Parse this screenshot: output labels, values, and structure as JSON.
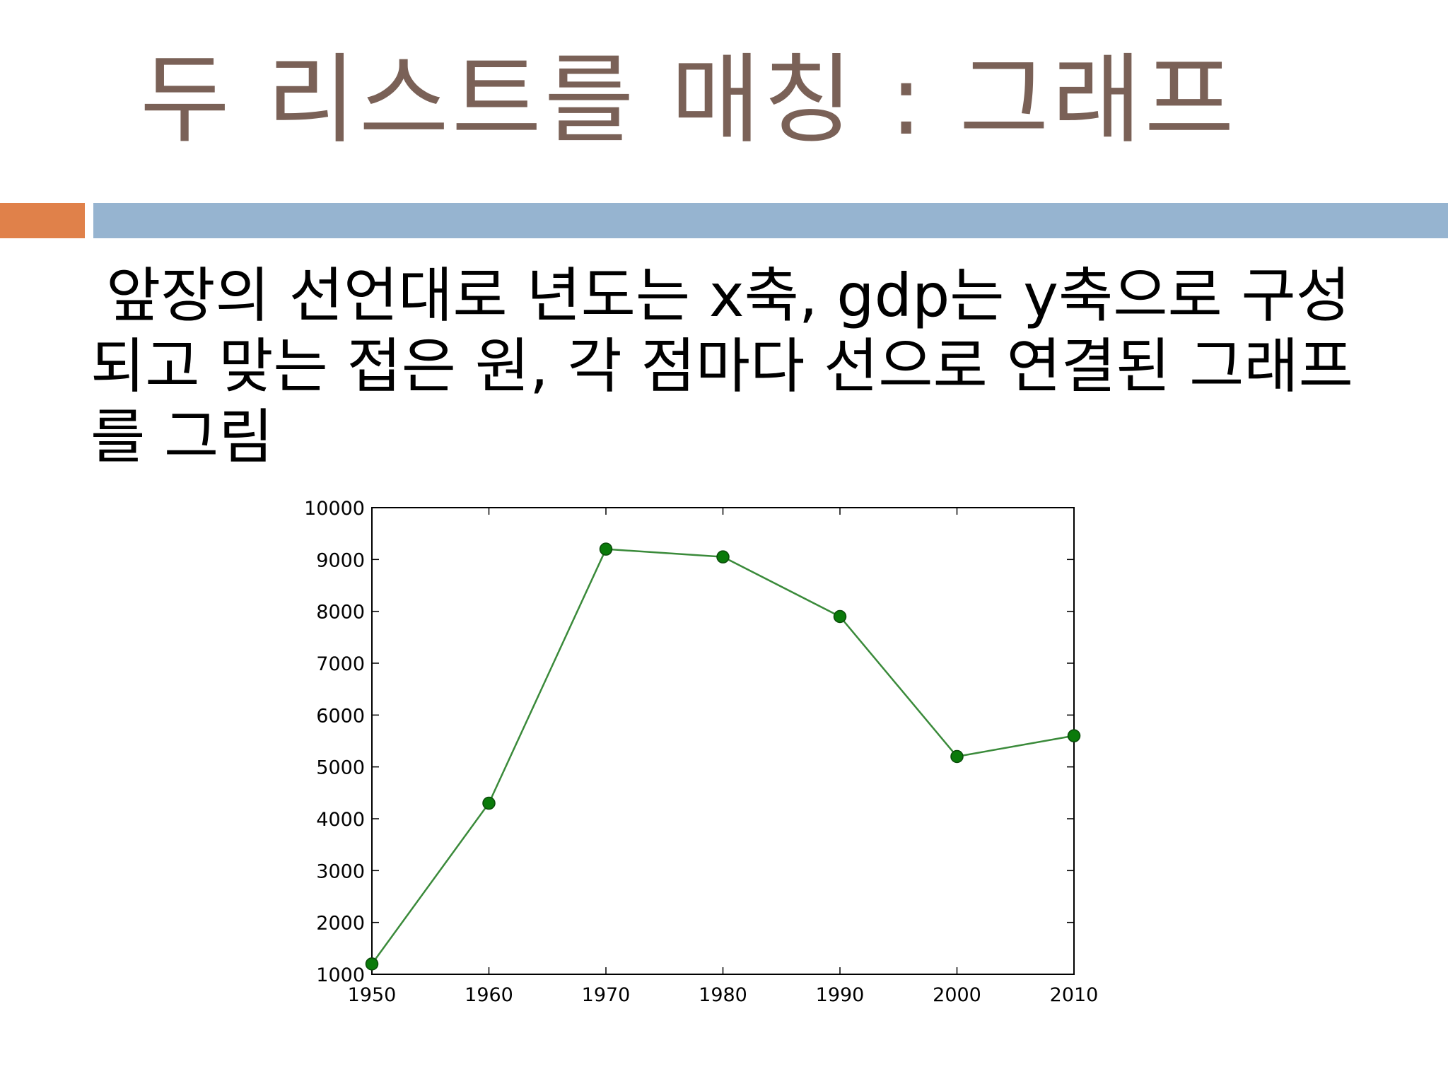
{
  "slide": {
    "title": "두 리스트를 매칭 : 그래프",
    "body": "앞장의 선언대로 년도는 x축, gdp는 y축으로 구성되고 맞는 접은 원, 각 점마다 선으로 연결된 그래프를 그림"
  },
  "colors": {
    "title": "#7a6157",
    "accent_orange": "#e0814a",
    "accent_blue": "#96b4d0",
    "series_line": "#3a8a3a",
    "series_marker": "#0a7a0a"
  },
  "chart_data": {
    "type": "line",
    "x": [
      1950,
      1960,
      1970,
      1980,
      1990,
      2000,
      2010
    ],
    "series": [
      {
        "values": [
          1200,
          4300,
          9200,
          9050,
          7900,
          5200,
          5600
        ],
        "marker": "circle"
      }
    ],
    "xlim": [
      1950,
      2010
    ],
    "ylim": [
      1000,
      10000
    ],
    "xticks": [
      "1950",
      "1960",
      "1970",
      "1980",
      "1990",
      "2000",
      "2010"
    ],
    "yticks": [
      "1000",
      "2000",
      "3000",
      "4000",
      "5000",
      "6000",
      "7000",
      "8000",
      "9000",
      "10000"
    ],
    "title": "",
    "xlabel": "",
    "ylabel": "",
    "grid": false
  }
}
